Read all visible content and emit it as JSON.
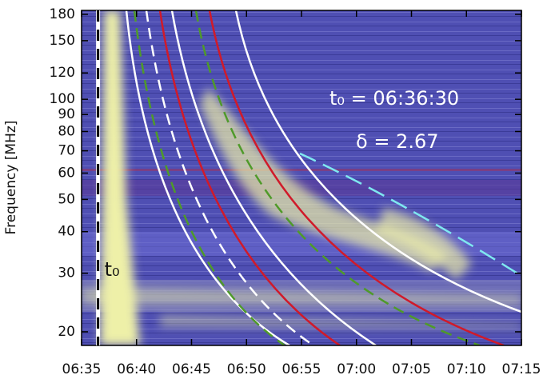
{
  "chart_data": {
    "type": "spectrogram",
    "ylabel": "Frequency [MHz]",
    "log_y": true,
    "xlim": [
      395,
      435
    ],
    "xticks": [
      {
        "value": 395,
        "label": "06:35"
      },
      {
        "value": 400,
        "label": "06:40"
      },
      {
        "value": 405,
        "label": "06:45"
      },
      {
        "value": 410,
        "label": "06:50"
      },
      {
        "value": 415,
        "label": "06:55"
      },
      {
        "value": 420,
        "label": "07:00"
      },
      {
        "value": 425,
        "label": "07:05"
      },
      {
        "value": 430,
        "label": "07:10"
      },
      {
        "value": 435,
        "label": "07:15"
      }
    ],
    "ylim": [
      18.2,
      185
    ],
    "yticks": [
      20,
      30,
      40,
      50,
      60,
      70,
      80,
      90,
      100,
      120,
      150,
      180
    ],
    "vline": 396.5,
    "vline_label": "t₀",
    "annotations": [
      "t₀  =  06:36:30",
      "δ  =  2.67"
    ]
  }
}
